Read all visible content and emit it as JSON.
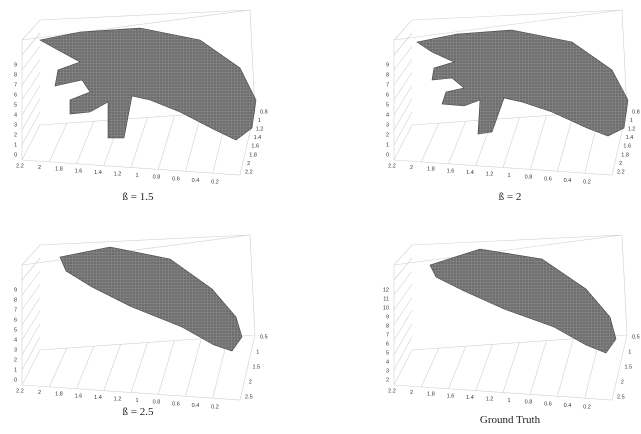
{
  "panels": [
    {
      "caption": "ß = 1.5",
      "z_ticks": [
        "0",
        "1",
        "2",
        "3",
        "4",
        "5",
        "6",
        "7",
        "8",
        "9"
      ],
      "x_ticks": [
        "2.2",
        "2",
        "1.8",
        "1.6",
        "1.4",
        "1.2",
        "1",
        "0.8",
        "0.6",
        "0.4",
        "0.2"
      ],
      "y_ticks": [
        "0.8",
        "1",
        "1.2",
        "1.4",
        "1.6",
        "1.8",
        "2",
        "2.2"
      ]
    },
    {
      "caption": "ß = 2",
      "z_ticks": [
        "0",
        "1",
        "2",
        "3",
        "4",
        "5",
        "6",
        "7",
        "8",
        "9"
      ],
      "x_ticks": [
        "2.2",
        "2",
        "1.8",
        "1.6",
        "1.4",
        "1.2",
        "1",
        "0.8",
        "0.6",
        "0.4",
        "0.2"
      ],
      "y_ticks": [
        "0.8",
        "1",
        "1.2",
        "1.4",
        "1.6",
        "1.8",
        "2",
        "2.2"
      ]
    },
    {
      "caption": "ß = 2.5",
      "z_ticks": [
        "0",
        "1",
        "2",
        "3",
        "4",
        "5",
        "6",
        "7",
        "8",
        "9"
      ],
      "x_ticks": [
        "2.2",
        "2",
        "1.8",
        "1.6",
        "1.4",
        "1.2",
        "1",
        "0.8",
        "0.6",
        "0.4",
        "0.2"
      ],
      "y_ticks": [
        "0.5",
        "1",
        "1.5",
        "2",
        "2.5"
      ]
    },
    {
      "caption": "Ground Truth",
      "z_ticks": [
        "2",
        "3",
        "4",
        "5",
        "6",
        "7",
        "8",
        "9",
        "10",
        "11",
        "12"
      ],
      "x_ticks": [
        "2.2",
        "2",
        "1.8",
        "1.6",
        "1.4",
        "1.2",
        "1",
        "0.8",
        "0.6",
        "0.4",
        "0.2"
      ],
      "y_ticks": [
        "0.5",
        "1",
        "1.5",
        "2",
        "2.5"
      ]
    }
  ]
}
